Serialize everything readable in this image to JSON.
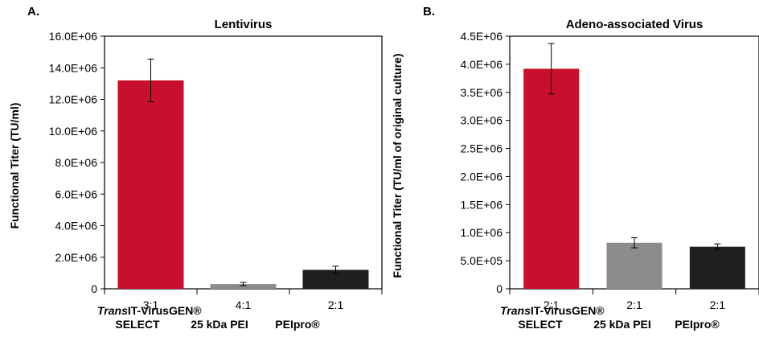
{
  "panels": [
    {
      "letter": "A.",
      "title": "Lentivirus",
      "ylabel": "Functional Titer (TU/ml)"
    },
    {
      "letter": "B.",
      "title": "Adeno-associated Virus",
      "ylabel": "Functional Titer (TU/ml of original culture)"
    }
  ],
  "reagents": [
    {
      "italic": "Trans",
      "name": "IT-VirusGEN®",
      "line2": "SELECT"
    },
    {
      "italic": "",
      "name": "",
      "line2": "25 kDa PEI"
    },
    {
      "italic": "",
      "name": "",
      "line2": "PEIpro®"
    }
  ],
  "colors": {
    "transit": "#c8102e",
    "pei": "#8c8c8c",
    "peipro": "#1f1f1f"
  },
  "chart_data": [
    {
      "type": "bar",
      "title": "Lentivirus",
      "xlabel": "",
      "ylabel": "Functional Titer (TU/ml)",
      "categories": [
        "3:1",
        "4:1",
        "2:1"
      ],
      "values": [
        13200000,
        300000,
        1200000
      ],
      "errors": [
        1350000,
        100000,
        230000
      ],
      "ylim": [
        0,
        16000000
      ],
      "yticks": [
        0,
        2000000,
        4000000,
        6000000,
        8000000,
        10000000,
        12000000,
        14000000,
        16000000
      ],
      "ytick_labels": [
        "0",
        "2.0E+06",
        "4.0E+06",
        "6.0E+06",
        "8.0E+06",
        "10.0E+06",
        "12.0E+06",
        "14.0E+06",
        "16.0E+06"
      ],
      "bar_colors": [
        "#c8102e",
        "#8c8c8c",
        "#1f1f1f"
      ],
      "grid": false
    },
    {
      "type": "bar",
      "title": "Adeno-associated Virus",
      "xlabel": "",
      "ylabel": "Functional Titer (TU/ml of original culture)",
      "categories": [
        "2:1",
        "2:1",
        "2:1"
      ],
      "values": [
        3920000,
        820000,
        750000
      ],
      "errors": [
        450000,
        90000,
        50000
      ],
      "ylim": [
        0,
        4500000
      ],
      "yticks": [
        0,
        500000,
        1000000,
        1500000,
        2000000,
        2500000,
        3000000,
        3500000,
        4000000,
        4500000
      ],
      "ytick_labels": [
        "0",
        "5.0E+05",
        "1.0E+06",
        "1.5E+06",
        "2.0E+06",
        "2.5E+06",
        "3.0E+06",
        "3.5E+06",
        "4.0E+06",
        "4.5E+06"
      ],
      "bar_colors": [
        "#c8102e",
        "#8c8c8c",
        "#1f1f1f"
      ],
      "grid": false
    }
  ]
}
